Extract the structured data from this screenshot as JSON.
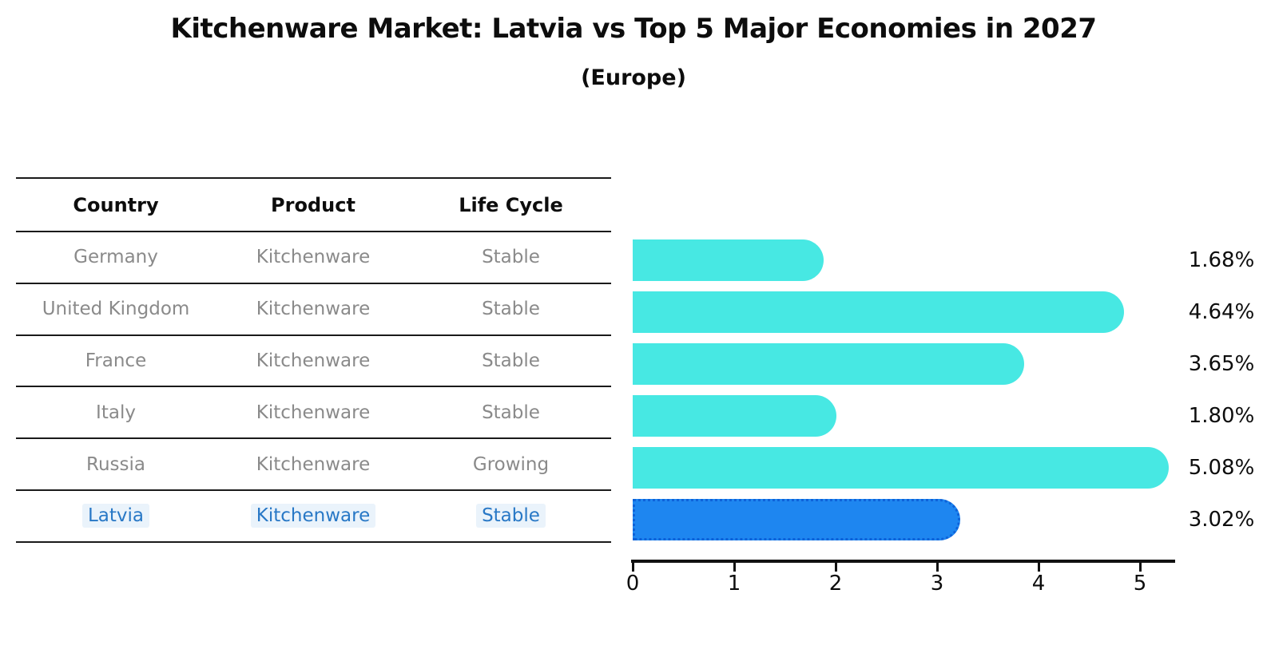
{
  "title": "Kitchenware Market: Latvia vs Top 5 Major Economies in 2027",
  "subtitle": "(Europe)",
  "table": {
    "headers": [
      "Country",
      "Product",
      "Life Cycle"
    ],
    "rows": [
      [
        "Germany",
        "Kitchenware",
        "Stable"
      ],
      [
        "United Kingdom",
        "Kitchenware",
        "Stable"
      ],
      [
        "France",
        "Kitchenware",
        "Stable"
      ],
      [
        "Italy",
        "Kitchenware",
        "Stable"
      ],
      [
        "Russia",
        "Kitchenware",
        "Growing"
      ],
      [
        "Latvia",
        "Kitchenware",
        "Stable"
      ]
    ],
    "highlight_row_index": 5
  },
  "chart_data": {
    "type": "bar",
    "orientation": "horizontal",
    "title": "Kitchenware Market: Latvia vs Top 5 Major Economies in 2027",
    "subtitle": "(Europe)",
    "categories": [
      "Germany",
      "United Kingdom",
      "France",
      "Italy",
      "Russia",
      "Latvia"
    ],
    "values": [
      1.68,
      4.64,
      3.65,
      1.8,
      5.08,
      3.02
    ],
    "value_labels": [
      "1.68%",
      "4.64%",
      "3.65%",
      "1.80%",
      "5.08%",
      "3.02%"
    ],
    "highlight_index": 5,
    "xlim": [
      0,
      5.36
    ],
    "x_ticks": [
      0,
      1,
      2,
      3,
      4,
      5
    ],
    "x_tick_labels": [
      "0",
      "1",
      "2",
      "3",
      "4",
      "5"
    ],
    "grid": false,
    "legend": false,
    "bar_color": "#47e8e3",
    "highlight_bar_color": "#1e86f0",
    "highlight_text_color": "#2878c6",
    "row_text_color": "#8a8a8a"
  }
}
